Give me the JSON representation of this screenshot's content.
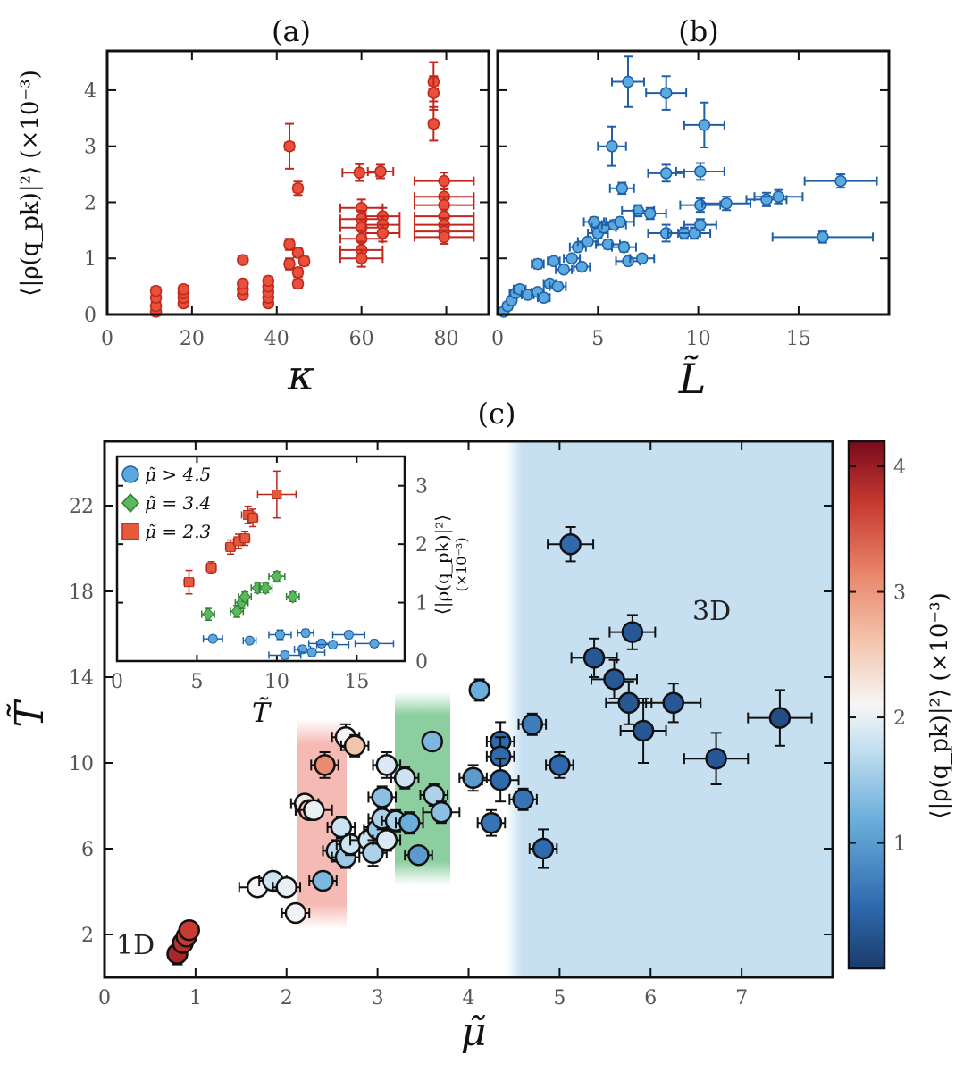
{
  "panel_labels": {
    "a": "(a)",
    "b": "(b)",
    "c": "(c)"
  },
  "axes": {
    "a_xlabel": "κ",
    "b_xlabel": "L̃",
    "ab_ylabel": "⟨|ρ(q_pk)|²⟩ (×10⁻³)",
    "c_xlabel": "μ̃",
    "c_ylabel": "T̃",
    "colorbar_label": "⟨|ρ(q_pk)|²⟩ (×10⁻³)",
    "inset_xlabel": "T̃",
    "inset_ylabel": "⟨|ρ(q_pk)|²⟩",
    "inset_yunit": "(×10⁻³)"
  },
  "annotations": {
    "one_d": "1D",
    "three_d": "3D"
  },
  "legend": [
    {
      "label": "μ̃ > 4.5",
      "marker": "circle",
      "color": "#5aa7dd"
    },
    {
      "label": "μ̃ = 3.4",
      "marker": "diamond",
      "color": "#5cb85c"
    },
    {
      "label": "μ̃ = 2.3",
      "marker": "square",
      "color": "#e65a3c"
    }
  ],
  "colors": {
    "panel_a": "#e8503a",
    "panel_a_err": "#c0281e",
    "panel_b": "#5aaae0",
    "panel_b_err": "#1f5fa8",
    "band_red": "#f4b2ab",
    "band_green": "#8fd0a2",
    "band_blue": "#c6e0f2"
  },
  "colorbar": {
    "min": 0,
    "max": 4.2,
    "ticks": [
      "1",
      "2",
      "3",
      "4"
    ]
  },
  "chart_data": [
    {
      "type": "scatter",
      "title": "(a)",
      "xlabel": "κ",
      "ylabel": "⟨|ρ(q_pk)|²⟩ (×10⁻³)",
      "xlim": [
        0,
        90
      ],
      "ylim": [
        0,
        4.7
      ],
      "xticks": [
        0,
        20,
        40,
        60,
        80
      ],
      "yticks": [
        0,
        1,
        2,
        3,
        4
      ],
      "points": [
        [
          11.5,
          0.05,
          1,
          0.05
        ],
        [
          11.5,
          0.15,
          1,
          0.05
        ],
        [
          11.5,
          0.3,
          1,
          0.05
        ],
        [
          11.5,
          0.42,
          1,
          0.05
        ],
        [
          18,
          0.2,
          1,
          0.05
        ],
        [
          18,
          0.3,
          1,
          0.05
        ],
        [
          18,
          0.38,
          1,
          0.05
        ],
        [
          18,
          0.45,
          1,
          0.05
        ],
        [
          32,
          0.35,
          1,
          0.05
        ],
        [
          32,
          0.45,
          1,
          0.05
        ],
        [
          32,
          0.55,
          1,
          0.05
        ],
        [
          32,
          0.97,
          1,
          0.05
        ],
        [
          38,
          0.2,
          1,
          0.05
        ],
        [
          38,
          0.3,
          1,
          0.05
        ],
        [
          38,
          0.4,
          1,
          0.05
        ],
        [
          38,
          0.5,
          1,
          0.05
        ],
        [
          38,
          0.6,
          1,
          0.05
        ],
        [
          43,
          3.0,
          1,
          0.4
        ],
        [
          43,
          1.25,
          1,
          0.1
        ],
        [
          43,
          0.9,
          1,
          0.1
        ],
        [
          45,
          2.25,
          1,
          0.12
        ],
        [
          45,
          1.1,
          1,
          0.08
        ],
        [
          45,
          0.75,
          1,
          0.08
        ],
        [
          45,
          0.55,
          1,
          0.08
        ],
        [
          46.5,
          0.95,
          1,
          0.08
        ],
        [
          59.5,
          2.53,
          4,
          0.15
        ],
        [
          64.5,
          2.55,
          3,
          0.12
        ],
        [
          60,
          1.9,
          5,
          0.15
        ],
        [
          60,
          1.7,
          5,
          0.15
        ],
        [
          60,
          1.55,
          5,
          0.15
        ],
        [
          60,
          1.35,
          5,
          0.15
        ],
        [
          60,
          1.15,
          5,
          0.15
        ],
        [
          60,
          1.0,
          5,
          0.15
        ],
        [
          65,
          1.75,
          4,
          0.15
        ],
        [
          65,
          1.6,
          4,
          0.15
        ],
        [
          65,
          1.45,
          4,
          0.15
        ],
        [
          77,
          4.15,
          1,
          0.35
        ],
        [
          77,
          3.95,
          1,
          0.3
        ],
        [
          77,
          3.4,
          1,
          0.3
        ],
        [
          79.5,
          2.38,
          7,
          0.15
        ],
        [
          79.5,
          2.1,
          7,
          0.15
        ],
        [
          79.5,
          1.95,
          7,
          0.15
        ],
        [
          79.5,
          1.75,
          7,
          0.12
        ],
        [
          79.5,
          1.6,
          7,
          0.12
        ],
        [
          79.5,
          1.48,
          7,
          0.12
        ],
        [
          79.5,
          1.38,
          7,
          0.12
        ]
      ]
    },
    {
      "type": "scatter",
      "title": "(b)",
      "xlabel": "L̃",
      "xlim": [
        0,
        19.5
      ],
      "ylim": [
        0,
        4.7
      ],
      "xticks": [
        0,
        5,
        10,
        15
      ],
      "yticks": [
        0,
        1,
        2,
        3,
        4
      ],
      "points": [
        [
          0.3,
          0.05,
          0.2,
          0.03
        ],
        [
          0.5,
          0.15,
          0.2,
          0.03
        ],
        [
          0.7,
          0.25,
          0.2,
          0.03
        ],
        [
          0.9,
          0.38,
          0.3,
          0.04
        ],
        [
          1.1,
          0.45,
          0.3,
          0.04
        ],
        [
          1.5,
          0.35,
          0.3,
          0.04
        ],
        [
          2.0,
          0.4,
          0.3,
          0.05
        ],
        [
          2.0,
          0.9,
          0.3,
          0.08
        ],
        [
          2.3,
          0.3,
          0.3,
          0.05
        ],
        [
          2.6,
          0.55,
          0.3,
          0.05
        ],
        [
          2.8,
          0.95,
          0.3,
          0.05
        ],
        [
          3.0,
          0.5,
          0.4,
          0.05
        ],
        [
          3.3,
          0.8,
          0.4,
          0.06
        ],
        [
          3.7,
          1.0,
          0.4,
          0.06
        ],
        [
          4.0,
          1.2,
          0.4,
          0.06
        ],
        [
          4.2,
          0.85,
          0.4,
          0.06
        ],
        [
          4.5,
          1.3,
          0.5,
          0.06
        ],
        [
          4.8,
          1.65,
          0.5,
          0.08
        ],
        [
          5.0,
          1.45,
          0.5,
          0.08
        ],
        [
          5.3,
          1.55,
          0.6,
          0.08
        ],
        [
          5.5,
          1.25,
          0.6,
          0.08
        ],
        [
          5.8,
          1.6,
          0.6,
          0.08
        ],
        [
          6.1,
          1.65,
          0.7,
          0.08
        ],
        [
          6.3,
          1.2,
          0.6,
          0.08
        ],
        [
          6.5,
          0.95,
          0.6,
          0.06
        ],
        [
          6.2,
          2.25,
          0.6,
          0.1
        ],
        [
          5.7,
          3.0,
          0.7,
          0.35
        ],
        [
          6.5,
          4.15,
          0.8,
          0.45
        ],
        [
          8.4,
          3.95,
          1.0,
          0.3
        ],
        [
          10.3,
          3.38,
          1.0,
          0.4
        ],
        [
          8.4,
          2.52,
          0.9,
          0.15
        ],
        [
          10.1,
          2.55,
          1.2,
          0.15
        ],
        [
          7.0,
          1.85,
          0.8,
          0.1
        ],
        [
          7.6,
          1.8,
          0.8,
          0.1
        ],
        [
          8.4,
          1.45,
          0.9,
          0.15
        ],
        [
          9.3,
          1.45,
          0.8,
          0.1
        ],
        [
          9.8,
          1.45,
          0.8,
          0.1
        ],
        [
          10.1,
          1.6,
          0.8,
          0.1
        ],
        [
          10.1,
          1.95,
          1.0,
          0.12
        ],
        [
          11.4,
          1.98,
          1.2,
          0.12
        ],
        [
          13.4,
          2.05,
          1.0,
          0.12
        ],
        [
          14.0,
          2.1,
          1.2,
          0.12
        ],
        [
          17.1,
          2.38,
          1.8,
          0.12
        ],
        [
          16.2,
          1.38,
          2.5,
          0.1
        ],
        [
          7.2,
          1.0,
          0.6,
          0.06
        ]
      ]
    },
    {
      "type": "scatter",
      "title": "(c)",
      "xlabel": "μ̃",
      "ylabel": "T̃",
      "xlim": [
        0,
        8
      ],
      "ylim": [
        0,
        25
      ],
      "xticks": [
        0,
        1,
        2,
        3,
        4,
        5,
        6,
        7
      ],
      "yticks": [
        2,
        6,
        10,
        14,
        18,
        22
      ],
      "regions": [
        {
          "label": "1D",
          "x": 0.3,
          "y": 2
        },
        {
          "label": "3D",
          "x": 6.7,
          "y": 17.5,
          "x_range": [
            4.5,
            8
          ]
        }
      ],
      "points": [
        [
          0.8,
          1.1,
          0,
          0.5,
          3.9
        ],
        [
          0.86,
          1.6,
          0,
          0.3,
          3.8
        ],
        [
          0.9,
          1.9,
          0,
          0.3,
          3.7
        ],
        [
          0.93,
          2.2,
          0,
          0.4,
          3.7
        ],
        [
          1.68,
          4.2,
          0.2,
          0.3,
          2.1
        ],
        [
          1.85,
          4.5,
          0.15,
          0.3,
          1.8
        ],
        [
          2.0,
          4.2,
          0.15,
          0.3,
          2.0
        ],
        [
          2.1,
          3.0,
          0.15,
          0.4,
          2.05
        ],
        [
          2.2,
          8.1,
          0.15,
          0.4,
          2.2
        ],
        [
          2.25,
          7.8,
          0.15,
          0.3,
          2.6
        ],
        [
          2.3,
          7.8,
          0.2,
          0.4,
          2.0
        ],
        [
          2.42,
          9.9,
          0.15,
          0.6,
          3.1
        ],
        [
          2.65,
          11.2,
          0.15,
          0.6,
          2.1
        ],
        [
          2.75,
          10.8,
          0.15,
          0.5,
          2.6
        ],
        [
          2.4,
          4.5,
          0.15,
          0.4,
          1.3
        ],
        [
          2.55,
          5.9,
          0.15,
          0.5,
          1.7
        ],
        [
          2.6,
          7.0,
          0.15,
          0.5,
          1.8
        ],
        [
          2.65,
          5.6,
          0.15,
          0.5,
          1.5
        ],
        [
          2.7,
          6.2,
          0.15,
          0.5,
          1.8
        ],
        [
          2.9,
          6.4,
          0.2,
          0.6,
          1.8
        ],
        [
          2.95,
          5.8,
          0.15,
          0.6,
          1.6
        ],
        [
          3.0,
          6.9,
          0.15,
          0.6,
          1.5
        ],
        [
          3.05,
          7.4,
          0.15,
          0.5,
          1.6
        ],
        [
          3.1,
          6.4,
          0.15,
          0.5,
          1.9
        ],
        [
          3.05,
          8.4,
          0.15,
          0.5,
          1.4
        ],
        [
          3.1,
          9.9,
          0.15,
          0.6,
          1.9
        ],
        [
          3.2,
          7.3,
          0.15,
          0.5,
          1.6
        ],
        [
          3.3,
          9.3,
          0.15,
          0.5,
          1.8
        ],
        [
          3.35,
          7.2,
          0.15,
          0.5,
          1.2
        ],
        [
          3.45,
          5.7,
          0.15,
          0.4,
          1.0
        ],
        [
          3.6,
          11.0,
          0.1,
          0.4,
          1.3
        ],
        [
          3.62,
          8.5,
          0.15,
          0.5,
          1.6
        ],
        [
          3.7,
          7.7,
          0.2,
          0.5,
          1.4
        ],
        [
          4.05,
          9.3,
          0.15,
          0.6,
          1.0
        ],
        [
          4.12,
          13.4,
          0.1,
          0.5,
          1.2
        ],
        [
          4.25,
          7.2,
          0.15,
          0.6,
          0.6
        ],
        [
          4.35,
          11.0,
          0.15,
          0.9,
          0.5
        ],
        [
          4.35,
          10.3,
          0.15,
          0.9,
          0.5
        ],
        [
          4.35,
          9.2,
          0.2,
          1.0,
          0.5
        ],
        [
          4.6,
          8.3,
          0.15,
          0.5,
          0.6
        ],
        [
          4.7,
          11.8,
          0.15,
          0.5,
          0.7
        ],
        [
          4.82,
          6.0,
          0.15,
          0.9,
          0.5
        ],
        [
          5.0,
          9.9,
          0.15,
          0.6,
          0.5
        ],
        [
          5.12,
          20.2,
          0.25,
          0.8,
          0.5
        ],
        [
          5.38,
          14.9,
          0.25,
          0.9,
          0.3
        ],
        [
          5.6,
          13.9,
          0.25,
          0.9,
          0.3
        ],
        [
          5.76,
          12.8,
          0.25,
          1.0,
          0.3
        ],
        [
          5.8,
          16.1,
          0.25,
          0.8,
          0.3
        ],
        [
          5.92,
          11.5,
          0.25,
          1.5,
          0.3
        ],
        [
          6.25,
          12.8,
          0.3,
          0.9,
          0.3
        ],
        [
          6.72,
          10.2,
          0.35,
          1.2,
          0.3
        ],
        [
          7.42,
          12.1,
          0.35,
          1.3,
          0.2
        ]
      ]
    },
    {
      "type": "scatter",
      "title": "inset",
      "xlabel": "T̃",
      "ylabel": "⟨|ρ(q_pk)|²⟩ (×10⁻³)",
      "xlim": [
        0,
        18
      ],
      "ylim": [
        0,
        3.5
      ],
      "xticks": [
        0,
        5,
        10,
        15
      ],
      "yticks": [
        0,
        1,
        2,
        3
      ],
      "series": [
        {
          "name": "μ̃ > 4.5",
          "marker": "circle",
          "color": "#5aa7dd",
          "points": [
            [
              6,
              0.38,
              0.6,
              0.05
            ],
            [
              8.3,
              0.35,
              0.4,
              0.05
            ],
            [
              10.2,
              0.45,
              0.7,
              0.08
            ],
            [
              10.5,
              0.1,
              1.0,
              0.06
            ],
            [
              11.8,
              0.48,
              0.5,
              0.06
            ],
            [
              11.6,
              0.2,
              0.5,
              0.06
            ],
            [
              12.2,
              0.15,
              0.8,
              0.06
            ],
            [
              12.8,
              0.3,
              0.8,
              0.06
            ],
            [
              13.5,
              0.28,
              1.0,
              0.06
            ],
            [
              14.5,
              0.45,
              1.0,
              0.06
            ],
            [
              16.1,
              0.3,
              1.2,
              0.06
            ]
          ]
        },
        {
          "name": "μ̃ = 3.4",
          "marker": "diamond",
          "color": "#5cb85c",
          "points": [
            [
              5.7,
              0.8,
              0.4,
              0.1
            ],
            [
              7.5,
              0.85,
              0.4,
              0.1
            ],
            [
              7.8,
              1.0,
              0.4,
              0.1
            ],
            [
              8.0,
              1.1,
              0.4,
              0.08
            ],
            [
              8.8,
              1.25,
              0.4,
              0.08
            ],
            [
              9.3,
              1.25,
              0.4,
              0.08
            ],
            [
              10.0,
              1.45,
              0.5,
              0.08
            ],
            [
              11.0,
              1.1,
              0.4,
              0.08
            ]
          ]
        },
        {
          "name": "μ̃ = 2.3",
          "marker": "square",
          "color": "#e65a3c",
          "points": [
            [
              4.5,
              1.35,
              0.3,
              0.2
            ],
            [
              5.9,
              1.6,
              0.3,
              0.1
            ],
            [
              7.1,
              1.95,
              0.3,
              0.12
            ],
            [
              7.6,
              2.05,
              0.3,
              0.12
            ],
            [
              8.0,
              2.1,
              0.3,
              0.12
            ],
            [
              8.2,
              2.5,
              0.4,
              0.15
            ],
            [
              8.5,
              2.45,
              0.3,
              0.15
            ],
            [
              10.0,
              2.85,
              1.2,
              0.4
            ]
          ]
        }
      ]
    }
  ]
}
